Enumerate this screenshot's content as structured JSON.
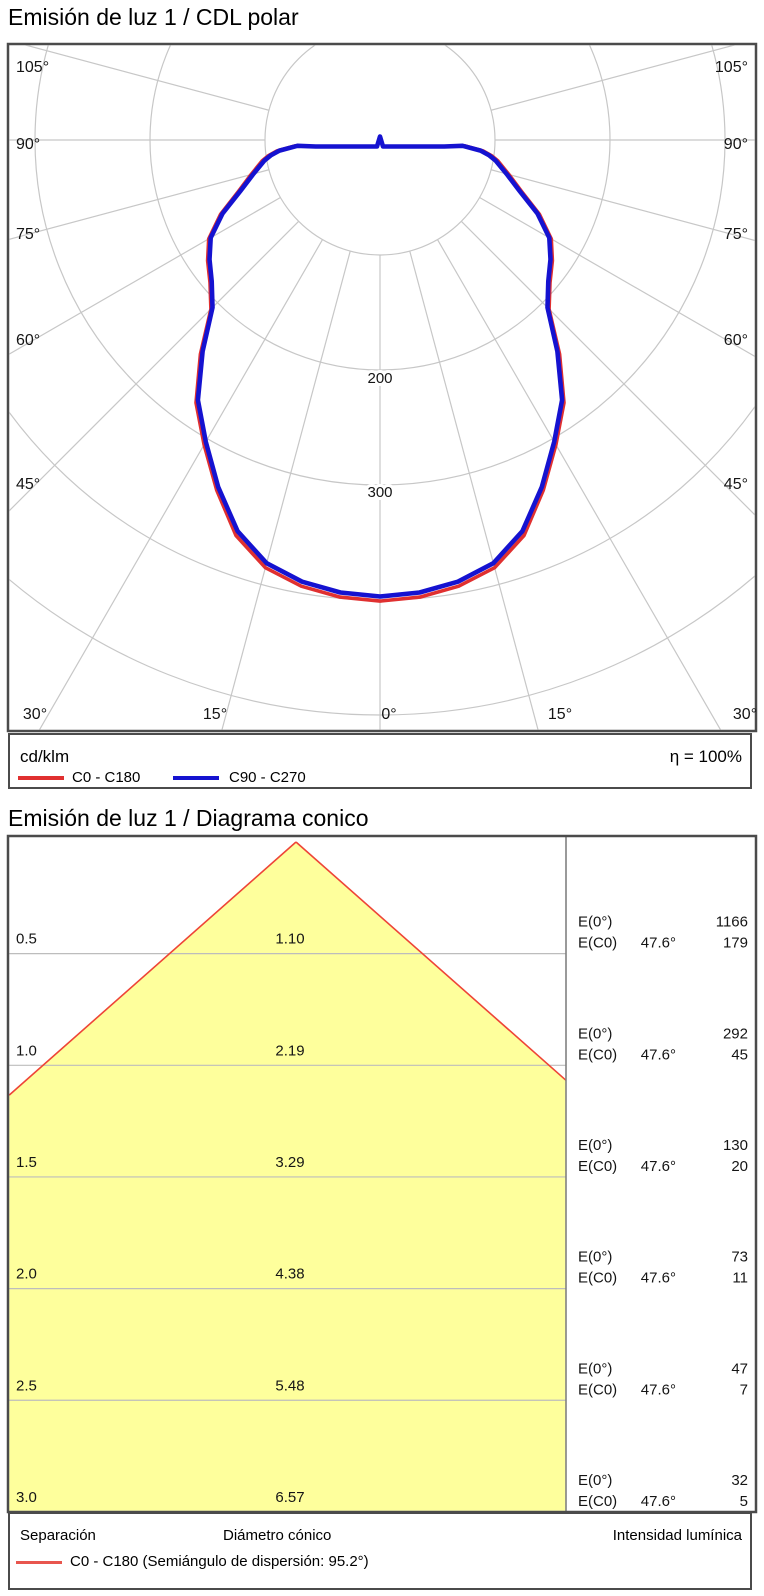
{
  "titles": {
    "polar": "Emisión de luz 1 / CDL polar",
    "cone": "Emisión de luz 1 / Diagrama conico"
  },
  "polar": {
    "unit": "cd/klm",
    "eta": "η = 100%",
    "legend": {
      "c0": "C0 - C180",
      "c90": "C90 - C270"
    },
    "angle_labels_left": [
      "105°",
      "90°",
      "75°",
      "60°",
      "45°"
    ],
    "angle_labels_right": [
      "105°",
      "90°",
      "75°",
      "60°",
      "45°"
    ],
    "angle_labels_bottom": [
      "30°",
      "15°",
      "0°",
      "15°",
      "30°"
    ],
    "ring_labels": [
      "200",
      "300"
    ]
  },
  "cone": {
    "e0_label": "E(0°)",
    "ec0_label": "E(C0)",
    "beam_angle": "47.6°",
    "rows": [
      {
        "separation": "0.5",
        "diameter": "1.10",
        "e0": "1166",
        "ec0": "179"
      },
      {
        "separation": "1.0",
        "diameter": "2.19",
        "e0": "292",
        "ec0": "45"
      },
      {
        "separation": "1.5",
        "diameter": "3.29",
        "e0": "130",
        "ec0": "20"
      },
      {
        "separation": "2.0",
        "diameter": "4.38",
        "e0": "73",
        "ec0": "11"
      },
      {
        "separation": "2.5",
        "diameter": "5.48",
        "e0": "47",
        "ec0": "7"
      },
      {
        "separation": "3.0",
        "diameter": "6.57",
        "e0": "32",
        "ec0": "5"
      }
    ],
    "footer": {
      "separation": "Separación",
      "diameter": "Diámetro cónico",
      "intensity": "Intensidad lumínica"
    },
    "legend": "C0 - C180 (Semiángulo de dispersión: 95.2°)"
  },
  "colors": {
    "curve_blue": "#1512d0",
    "curve_red": "#e03030",
    "cone_fill": "#feff9c",
    "cone_edge": "#ee4437",
    "grid": "#c7c7c7",
    "row_grid": "#bdbdbd",
    "border": "#4b4b4b",
    "divider": "#808080"
  },
  "chart_data": [
    {
      "type": "polar_line",
      "title": "Emisión de luz 1 / CDL polar",
      "unit": "cd/klm",
      "efficiency_percent": 100,
      "angle_ticks_deg": [
        -105,
        -90,
        -75,
        -60,
        -45,
        -30,
        -15,
        0,
        15,
        30,
        45,
        60,
        75,
        90,
        105
      ],
      "ring_values_cd_per_klm": [
        100,
        200,
        300,
        400,
        500
      ],
      "labeled_rings": [
        200,
        300
      ],
      "gamma_deg": [
        0,
        5,
        10,
        15,
        20,
        25,
        30,
        35,
        40,
        45,
        50,
        55,
        60,
        65,
        70,
        75,
        80,
        82,
        84,
        86,
        87,
        88,
        89,
        90
      ],
      "series": [
        {
          "name": "C0 - C180",
          "color": "#e03030",
          "values_cd_per_klm": [
            401,
            399,
            394,
            385,
            366,
            336,
            306,
            279,
            243,
            208,
            193,
            183,
            172,
            153,
            131,
            116,
            104,
            98,
            90,
            74,
            57,
            39,
            22,
            9
          ]
        },
        {
          "name": "C90 - C270",
          "color": "#1512d0",
          "values_cd_per_klm": [
            397,
            395,
            390,
            381,
            362,
            333,
            303,
            276,
            240,
            206,
            191,
            181,
            170,
            151,
            129,
            114,
            102,
            96,
            88,
            72,
            56,
            38,
            22,
            9
          ]
        }
      ]
    },
    {
      "type": "cone_diagram",
      "title": "Emisión de luz 1 / Diagrama conico",
      "beam_half_angle_deg": 47.6,
      "dispersion_semiangle_deg": 95.2,
      "separations_m": [
        0.5,
        1.0,
        1.5,
        2.0,
        2.5,
        3.0
      ],
      "cone_diameters_m": [
        1.1,
        2.19,
        3.29,
        4.38,
        5.48,
        6.57
      ],
      "E0_lx": [
        1166,
        292,
        130,
        73,
        47,
        32
      ],
      "EC0_lx": [
        179,
        45,
        20,
        11,
        7,
        5
      ]
    }
  ]
}
